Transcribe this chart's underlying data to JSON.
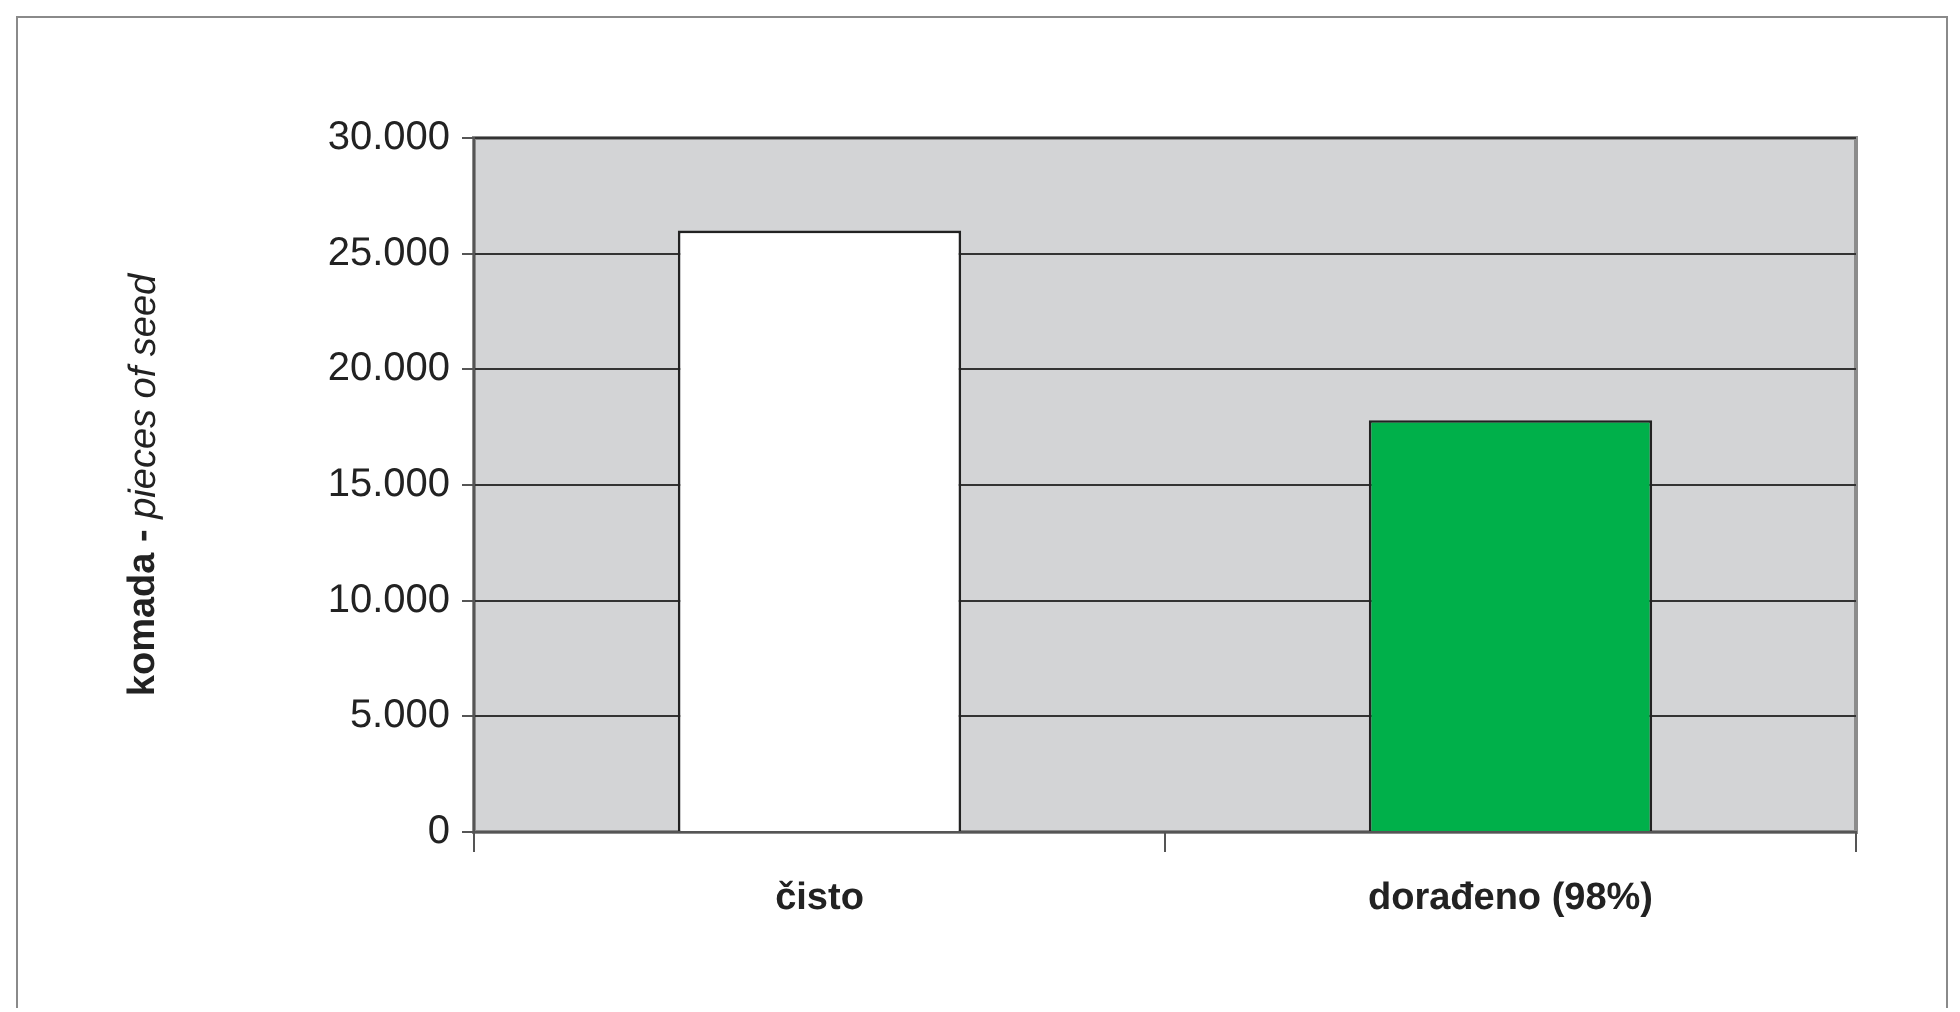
{
  "chart_data": {
    "type": "bar",
    "ylabel": "komada - pieces of seed",
    "categories": [
      "čisto",
      "dorađeno (98%)"
    ],
    "values": [
      26000,
      17800
    ],
    "colors": [
      "#ffffff",
      "#00b04a"
    ],
    "ylim": [
      0,
      30000
    ],
    "yticks": [
      {
        "value": 0,
        "label": "0"
      },
      {
        "value": 5000,
        "label": "5.000"
      },
      {
        "value": 10000,
        "label": "10.000"
      },
      {
        "value": 15000,
        "label": "15.000"
      },
      {
        "value": 20000,
        "label": "20.000"
      },
      {
        "value": 25000,
        "label": "25.000"
      },
      {
        "value": 30000,
        "label": "30.000"
      }
    ],
    "grid": "y",
    "legend": false
  }
}
